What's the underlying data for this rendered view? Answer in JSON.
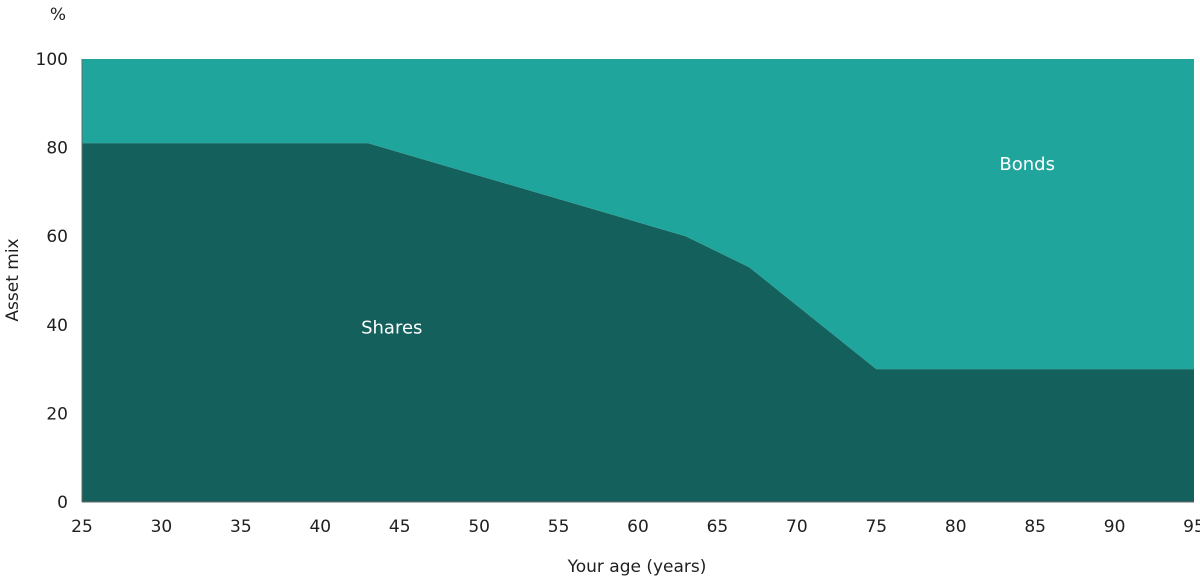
{
  "chart_data": {
    "type": "area",
    "stacked": true,
    "unit_label": "%",
    "xlabel": "Your age (years)",
    "ylabel": "Asset mix",
    "xlim": [
      25,
      95
    ],
    "ylim": [
      0,
      100
    ],
    "x_ticks": [
      25,
      30,
      35,
      40,
      45,
      50,
      55,
      60,
      65,
      70,
      75,
      80,
      85,
      90,
      95
    ],
    "y_ticks": [
      0,
      20,
      40,
      60,
      80,
      100
    ],
    "grid": false,
    "x": [
      25,
      43,
      63,
      67,
      75,
      95
    ],
    "series": [
      {
        "name": "Shares",
        "color": "#13605c",
        "values": [
          81,
          81,
          60,
          53,
          30,
          30
        ]
      },
      {
        "name": "Bonds",
        "color": "#1fa59c",
        "values": [
          19,
          19,
          40,
          47,
          70,
          70
        ]
      }
    ]
  }
}
